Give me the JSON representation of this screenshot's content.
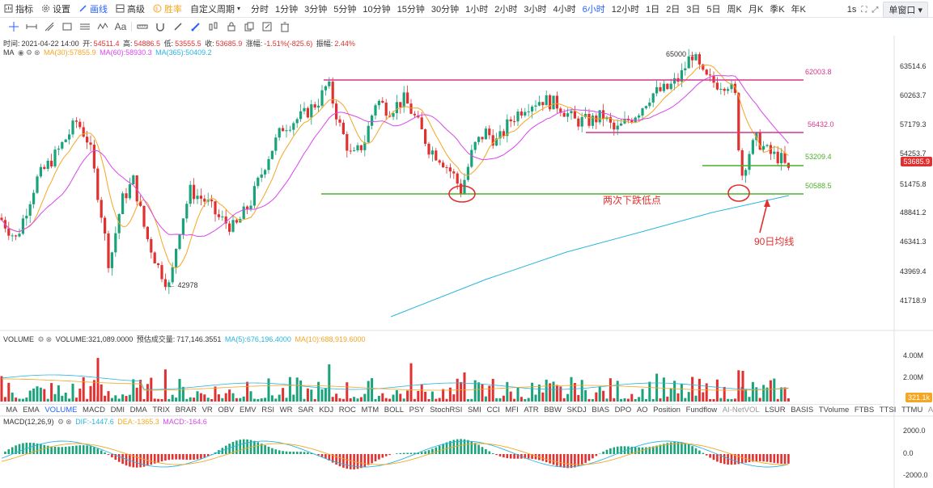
{
  "toolbar": {
    "indicators": "指标",
    "settings": "设置",
    "draw": "画线",
    "advanced": "高级",
    "winrate": "胜率",
    "custom_period": "自定义周期",
    "periods": [
      "分时",
      "1分钟",
      "3分钟",
      "5分钟",
      "10分钟",
      "15分钟",
      "30分钟",
      "1小时",
      "2小时",
      "3小时",
      "4小时",
      "6小时",
      "12小时",
      "1日",
      "2日",
      "3日",
      "5日",
      "周K",
      "月K",
      "季K",
      "年K"
    ],
    "active_period": "6小时",
    "interval_value": "1s",
    "single_window": "单窗口"
  },
  "info": {
    "time_label": "时间:",
    "time": "2021-04-22 14:00",
    "open_label": "开:",
    "open": "54511.4",
    "high_label": "高:",
    "high": "54886.5",
    "low_label": "低:",
    "low": "53555.5",
    "close_label": "收:",
    "close": "53685.9",
    "change_label": "涨幅:",
    "change": "-1.51%(-825.6)",
    "amp_label": "振幅:",
    "amp": "2.44%"
  },
  "ma": {
    "name": "MA",
    "ma30": "MA(30):57855.9",
    "ma60": "MA(60):58930.3",
    "ma365": "MA(365):50409.2"
  },
  "price_axis": [
    "63514.6",
    "60263.7",
    "57179.3",
    "54253.7",
    "51475.8",
    "48841.2",
    "46341.3",
    "43969.4",
    "41718.9"
  ],
  "current_price": "53685.9",
  "annotations": {
    "high": "65000",
    "low": "42978",
    "lvl1": "62003.8",
    "lvl2": "56432.0",
    "lvl3": "53209.4",
    "lvl4": "50588.5",
    "text_lows": "两次下跌低点",
    "text_ma90": "90日均线"
  },
  "volume": {
    "name": "VOLUME",
    "volume": "VOLUME:321,089.0000",
    "est_label": "预估成交量:",
    "est": "717,146.3551",
    "ma5": "MA(5):676,196.4000",
    "ma10": "MA(10):688,919.6000",
    "axis": [
      "4.00M",
      "2.00M"
    ],
    "current": "321.1k"
  },
  "indicators": [
    "MA",
    "EMA",
    "VOLUME",
    "MACD",
    "DMI",
    "DMA",
    "TRIX",
    "BRAR",
    "VR",
    "OBV",
    "EMV",
    "RSI",
    "WR",
    "SAR",
    "KDJ",
    "ROC",
    "MTM",
    "BOLL",
    "PSY",
    "StochRSI",
    "SMI",
    "CCI",
    "MFI",
    "ATR",
    "BBW",
    "SKDJ",
    "BIAS",
    "DPO",
    "AO",
    "Position",
    "Fundflow",
    "AI-NetVOL",
    "LSUR",
    "BASIS",
    "TVolume",
    "FTBS",
    "TTSI",
    "TTMU",
    "AI-BSI"
  ],
  "macd": {
    "name": "MACD(12,26,9)",
    "dif": "DIF:-1447.6",
    "dea": "DEA:-1365.3",
    "macd": "MACD:-164.6",
    "axis": [
      "2000.0",
      "0.0",
      "-2000.0"
    ]
  },
  "colors": {
    "up": "#1aa37a",
    "down": "#e03030",
    "ma30": "#f5a623",
    "ma60": "#d946ef",
    "ma365": "#2ab5e0",
    "resistance": "#d4378f",
    "support": "#4caf28",
    "accent": "#2962ff"
  }
}
